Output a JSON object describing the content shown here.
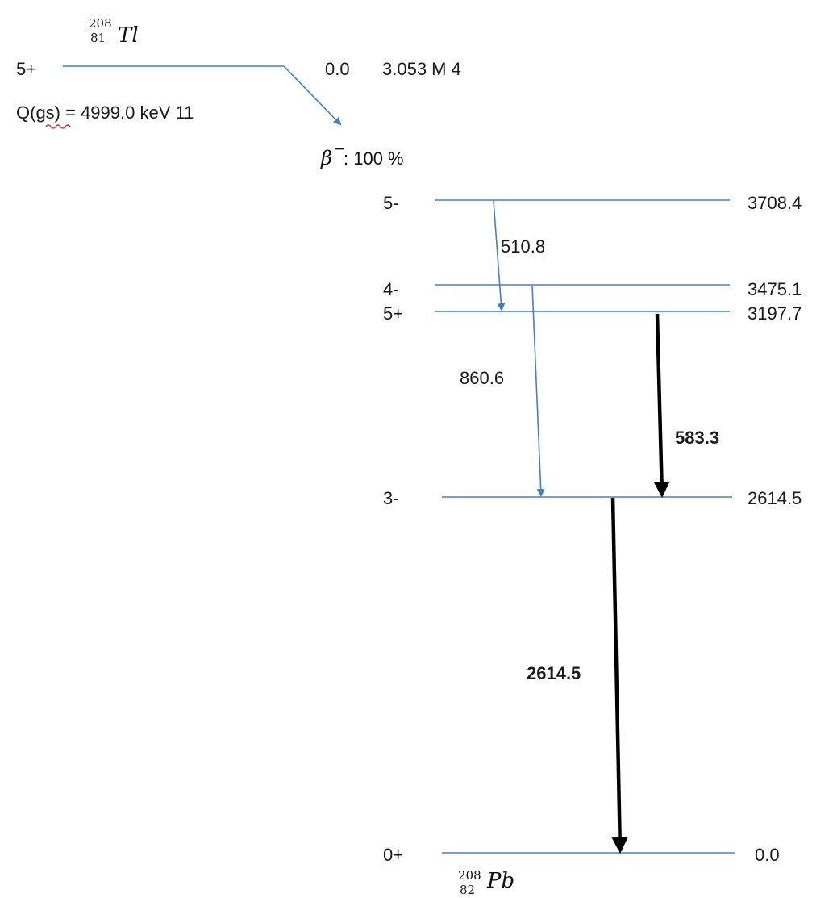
{
  "parent": {
    "mass": "208",
    "atomic": "81",
    "symbol": "Tl",
    "spin": "5+",
    "energy": "0.0",
    "halflife": "3.053 M 4",
    "q_value": "Q(gs) = 4999.0 keV 11"
  },
  "decay": {
    "symbol": "β",
    "sup": "−",
    "branch": ": 100 %"
  },
  "daughter": {
    "mass": "208",
    "atomic": "82",
    "symbol": "Pb"
  },
  "levels": [
    {
      "spin": "5-",
      "energy": "3708.4"
    },
    {
      "spin": "4-",
      "energy": "3475.1"
    },
    {
      "spin": "5+",
      "energy": "3197.7"
    },
    {
      "spin": "3-",
      "energy": "2614.5"
    },
    {
      "spin": "0+",
      "energy": "0.0"
    }
  ],
  "transitions": [
    {
      "energy": "510.8",
      "from": "3708.4",
      "to": "3197.7",
      "style": "thin"
    },
    {
      "energy": "860.6",
      "from": "3475.1",
      "to": "2614.5",
      "style": "thin"
    },
    {
      "energy": "583.3",
      "from": "3197.7",
      "to": "2614.5",
      "style": "bold"
    },
    {
      "energy": "2614.5",
      "from": "2614.5",
      "to": "0.0",
      "style": "bold"
    }
  ],
  "colors": {
    "level_line": "#4a7ebb",
    "thin_arrow": "#4a7ebb",
    "bold_arrow": "#000000",
    "text": "#1a1a1a"
  }
}
